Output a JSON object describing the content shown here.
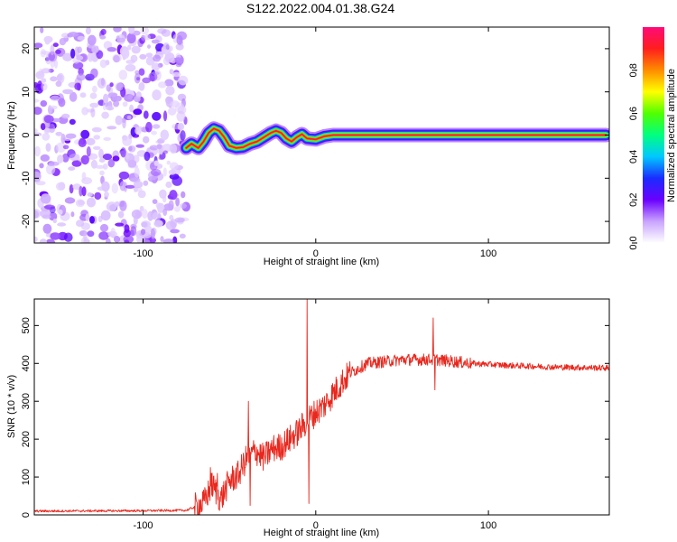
{
  "figure": {
    "title": "S122.2022.004.01.38.G24"
  },
  "chart_data": [
    {
      "type": "heatmap",
      "title": "S122.2022.004.01.38.G24",
      "xlabel": "Height of straight line (km)",
      "ylabel": "Frequency (Hz)",
      "xlim": [
        -163,
        170
      ],
      "ylim": [
        -25,
        25
      ],
      "x_ticks": [
        -100,
        0,
        100
      ],
      "y_ticks": [
        -20,
        -10,
        0,
        10,
        20
      ],
      "colorbar": {
        "label": "Normalized spectral amplitude",
        "range": [
          0.0,
          1.0
        ],
        "ticks": [
          0.0,
          0.2,
          0.4,
          0.6,
          0.8
        ]
      },
      "noise_region_x": [
        -163,
        -75
      ],
      "ridge": [
        {
          "x": -75,
          "y": -3.0
        },
        {
          "x": -72,
          "y": -2.0
        },
        {
          "x": -68,
          "y": -3.0
        },
        {
          "x": -65,
          "y": -1.5
        },
        {
          "x": -62,
          "y": 0.5
        },
        {
          "x": -59,
          "y": 1.5
        },
        {
          "x": -56,
          "y": 1.0
        },
        {
          "x": -53,
          "y": -0.5
        },
        {
          "x": -50,
          "y": -2.5
        },
        {
          "x": -46,
          "y": -3.0
        },
        {
          "x": -42,
          "y": -2.8
        },
        {
          "x": -38,
          "y": -2.0
        },
        {
          "x": -34,
          "y": -1.5
        },
        {
          "x": -30,
          "y": -0.5
        },
        {
          "x": -26,
          "y": 0.5
        },
        {
          "x": -23,
          "y": 1.0
        },
        {
          "x": -20,
          "y": 0.5
        },
        {
          "x": -17,
          "y": -0.8
        },
        {
          "x": -14,
          "y": -1.5
        },
        {
          "x": -11,
          "y": -0.5
        },
        {
          "x": -8,
          "y": 0.2
        },
        {
          "x": -5,
          "y": -0.8
        },
        {
          "x": 0,
          "y": -1.0
        },
        {
          "x": 5,
          "y": -0.3
        },
        {
          "x": 10,
          "y": 0.0
        },
        {
          "x": 20,
          "y": 0.0
        },
        {
          "x": 50,
          "y": 0.0
        },
        {
          "x": 100,
          "y": 0.0
        },
        {
          "x": 168,
          "y": 0.0
        }
      ]
    },
    {
      "type": "line",
      "xlabel": "Height of straight line (km)",
      "ylabel": "SNR (10 * v/v)",
      "xlim": [
        -163,
        170
      ],
      "ylim": [
        0,
        570
      ],
      "x_ticks": [
        -100,
        0,
        100
      ],
      "y_ticks": [
        0,
        100,
        200,
        300,
        400,
        500
      ],
      "color": "#e8281e",
      "trend": [
        [
          -163,
          10
        ],
        [
          -100,
          11
        ],
        [
          -75,
          12
        ],
        [
          -65,
          30
        ],
        [
          -60,
          80
        ],
        [
          -55,
          40
        ],
        [
          -50,
          90
        ],
        [
          -45,
          105
        ],
        [
          -40,
          150
        ],
        [
          -35,
          170
        ],
        [
          -30,
          150
        ],
        [
          -25,
          175
        ],
        [
          -20,
          180
        ],
        [
          -15,
          200
        ],
        [
          -10,
          220
        ],
        [
          -5,
          250
        ],
        [
          0,
          270
        ],
        [
          5,
          290
        ],
        [
          10,
          320
        ],
        [
          15,
          350
        ],
        [
          20,
          375
        ],
        [
          30,
          400
        ],
        [
          50,
          410
        ],
        [
          70,
          410
        ],
        [
          90,
          400
        ],
        [
          110,
          395
        ],
        [
          140,
          390
        ],
        [
          170,
          388
        ]
      ],
      "spikes": [
        {
          "x": -61,
          "y": 125
        },
        {
          "x": -57,
          "y": 110
        },
        {
          "x": -54,
          "y": 20
        },
        {
          "x": -39,
          "y": 300
        },
        {
          "x": -38,
          "y": 25
        },
        {
          "x": -5,
          "y": 568
        },
        {
          "x": -4,
          "y": 30
        },
        {
          "x": 68,
          "y": 520
        },
        {
          "x": 69,
          "y": 330
        }
      ]
    }
  ]
}
